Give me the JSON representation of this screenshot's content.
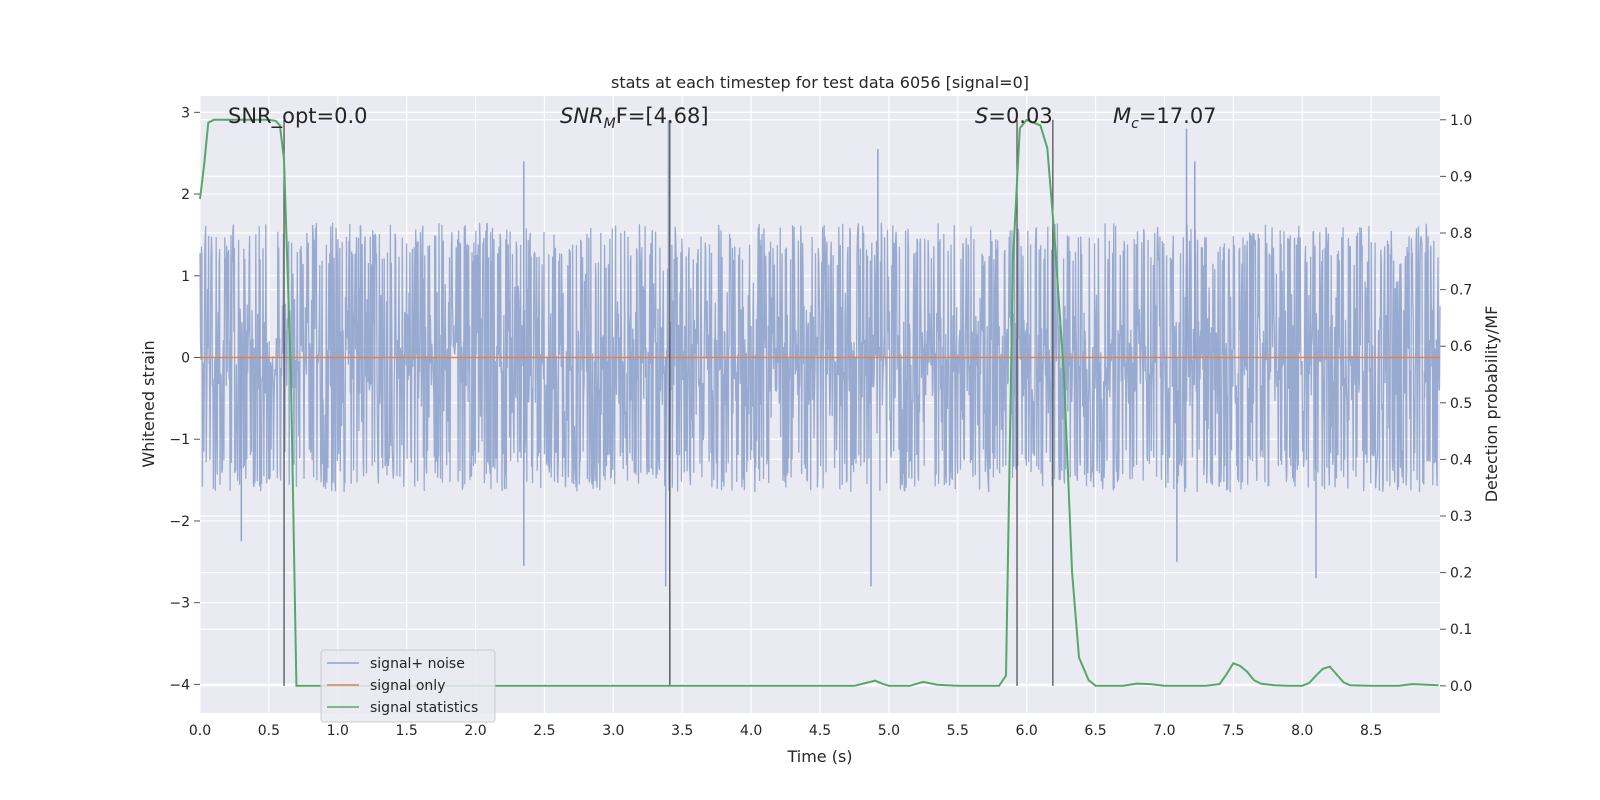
{
  "chart_data": {
    "type": "line",
    "title": "stats at each timestep for test data 6056 [signal=0]",
    "xlabel": "Time (s)",
    "ylabel_left": "Whitened strain",
    "ylabel_right": "Detection probability/MF",
    "xlim": [
      0,
      9
    ],
    "ylim_left": [
      -4.35,
      3.2
    ],
    "ylim_right": [
      -0.048,
      1.042
    ],
    "x_ticks": [
      "0.0",
      "0.5",
      "1.0",
      "1.5",
      "2.0",
      "2.5",
      "3.0",
      "3.5",
      "4.0",
      "4.5",
      "5.0",
      "5.5",
      "6.0",
      "6.5",
      "7.0",
      "7.5",
      "8.0",
      "8.5"
    ],
    "y_ticks_left": [
      "3",
      "2",
      "1",
      "0",
      "−1",
      "−2",
      "−3",
      "−4"
    ],
    "y_ticks_right": [
      "1.0",
      "0.9",
      "0.8",
      "0.7",
      "0.6",
      "0.5",
      "0.4",
      "0.3",
      "0.2",
      "0.1",
      "0.0"
    ],
    "grid": true,
    "legend_position": "lower-left",
    "annotations": {
      "snr_opt": "SNR_opt=0.0",
      "snr_mf_base": "SNR",
      "snr_mf_sub": "M",
      "snr_mf_rest": "F=[4.68]",
      "s_label": "S",
      "s_value": "=0.03",
      "mc_base": "M",
      "mc_sub": "c",
      "mc_value": "=17.07"
    },
    "vertical_lines": [
      0.61,
      3.41,
      5.93,
      6.19
    ],
    "series": [
      {
        "name": "signal+ noise",
        "axis": "left",
        "color": "#8fa3cc",
        "style": "noise",
        "amplitude_envelope": [
          -1.5,
          1.5
        ],
        "extreme_points": [
          {
            "x": 2.35,
            "y": 2.4
          },
          {
            "x": 3.4,
            "y": 2.9
          },
          {
            "x": 3.41,
            "y": -4.0
          },
          {
            "x": 3.38,
            "y": -2.8
          },
          {
            "x": 4.92,
            "y": 2.55
          },
          {
            "x": 4.87,
            "y": -2.8
          },
          {
            "x": 7.16,
            "y": 2.8
          },
          {
            "x": 7.22,
            "y": 2.4
          },
          {
            "x": 8.1,
            "y": -2.7
          },
          {
            "x": 2.35,
            "y": -2.55
          },
          {
            "x": 7.09,
            "y": -2.5
          },
          {
            "x": 0.3,
            "y": -2.25
          }
        ]
      },
      {
        "name": "signal only",
        "axis": "left",
        "color": "#dd8452",
        "x": [
          0,
          9
        ],
        "y": [
          0,
          0
        ]
      },
      {
        "name": "signal statistics",
        "axis": "right",
        "color": "#55a868",
        "x": [
          0,
          0.03,
          0.06,
          0.1,
          0.15,
          0.2,
          0.3,
          0.4,
          0.5,
          0.55,
          0.58,
          0.61,
          0.66,
          0.7,
          1.0,
          2.0,
          3.0,
          4.0,
          4.75,
          4.85,
          4.9,
          4.95,
          5.0,
          5.15,
          5.25,
          5.35,
          5.5,
          5.8,
          5.85,
          5.9,
          5.95,
          6.0,
          6.1,
          6.15,
          6.2,
          6.27,
          6.33,
          6.38,
          6.45,
          6.5,
          6.7,
          6.8,
          6.9,
          7.0,
          7.3,
          7.4,
          7.45,
          7.5,
          7.55,
          7.6,
          7.65,
          7.7,
          7.8,
          7.9,
          8.0,
          8.05,
          8.1,
          8.15,
          8.2,
          8.25,
          8.3,
          8.35,
          8.5,
          8.7,
          8.8,
          8.9,
          8.99
        ],
        "y": [
          0.86,
          0.92,
          0.995,
          1.0,
          1.0,
          1.0,
          1.0,
          1.0,
          1.0,
          0.998,
          0.99,
          0.93,
          0.55,
          0.0,
          0.0,
          0.0,
          0.0,
          0.0,
          0.0,
          0.006,
          0.009,
          0.004,
          0.0,
          0.0,
          0.007,
          0.002,
          0.0,
          0.0,
          0.018,
          0.75,
          0.985,
          1.0,
          0.99,
          0.95,
          0.8,
          0.55,
          0.2,
          0.05,
          0.01,
          0.0,
          0.0,
          0.004,
          0.003,
          0.0,
          0.0,
          0.003,
          0.02,
          0.04,
          0.035,
          0.025,
          0.01,
          0.004,
          0.001,
          0.0,
          0.0,
          0.005,
          0.018,
          0.03,
          0.034,
          0.02,
          0.006,
          0.001,
          0.0,
          0.0,
          0.003,
          0.002,
          0.001
        ]
      }
    ]
  }
}
